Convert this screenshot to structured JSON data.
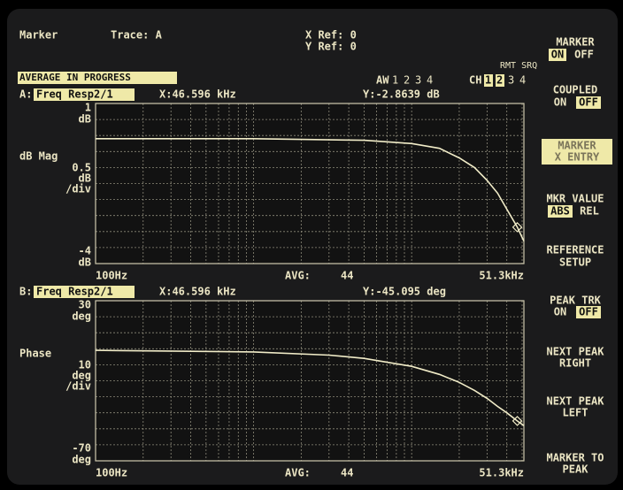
{
  "header": {
    "marker": "Marker",
    "trace": "Trace: A",
    "x_ref": "X Ref: 0",
    "y_ref": "Y Ref: 0",
    "status": "AVERAGE IN PROGRESS",
    "rmt_srq": "RMT SRQ",
    "aw": {
      "label": "AW",
      "items": [
        "1",
        "2",
        "3",
        "4"
      ]
    },
    "ch": {
      "label": "CH",
      "items": [
        "1",
        "2",
        "3",
        "4"
      ]
    }
  },
  "panels": [
    {
      "id": "A:",
      "name": "Freq Resp2/1",
      "marker_x": {
        "value": 46596,
        "label": "X:46.596  kHz"
      },
      "marker_y": {
        "value": -2.8639,
        "label": "Y:-2.8639 dB"
      },
      "ylabel": "dB Mag",
      "per_div": 0.5,
      "per_div_unit": "dB",
      "per_div_suffix": "/div",
      "ylim": [
        -4,
        1
      ],
      "yunit": "dB",
      "ygrid": [
        1,
        0.5,
        0,
        -0.5,
        -1,
        -1.5,
        -2,
        -2.5,
        -3,
        -3.5,
        -4
      ],
      "xlim": [
        {
          "value": 100,
          "label": "100Hz"
        },
        {
          "value": 51300,
          "label": "51.3kHz"
        }
      ],
      "xgrid": [
        200,
        300,
        400,
        500,
        600,
        700,
        800,
        900,
        1000,
        2000,
        3000,
        4000,
        5000,
        6000,
        7000,
        8000,
        9000,
        10000,
        20000,
        30000,
        40000,
        50000
      ],
      "avg_label": "AVG:",
      "avg": 44,
      "trace": {
        "x": [
          100,
          1000,
          5000,
          10000,
          15000,
          20000,
          25000,
          30000,
          35000,
          40000,
          46596,
          51300
        ],
        "values": [
          -0.1,
          -0.1,
          -0.15,
          -0.25,
          -0.4,
          -0.7,
          -1.0,
          -1.4,
          -1.8,
          -2.3,
          -2.86,
          -3.3
        ]
      }
    },
    {
      "id": "B:",
      "name": "Freq Resp2/1",
      "marker_x": {
        "value": 46596,
        "label": "X:46.596  kHz"
      },
      "marker_y": {
        "value": -45.095,
        "label": "Y:-45.095 deg"
      },
      "ylabel": "Phase",
      "per_div": 10,
      "per_div_unit": "deg",
      "per_div_suffix": "/div",
      "ylim": [
        -70,
        30
      ],
      "yunit": "deg",
      "ygrid": [
        30,
        20,
        10,
        0,
        -10,
        -20,
        -30,
        -40,
        -50,
        -60,
        -70
      ],
      "xlim": [
        {
          "value": 100,
          "label": "100Hz"
        },
        {
          "value": 51300,
          "label": "51.3kHz"
        }
      ],
      "xgrid": [
        200,
        300,
        400,
        500,
        600,
        700,
        800,
        900,
        1000,
        2000,
        3000,
        4000,
        5000,
        6000,
        7000,
        8000,
        9000,
        10000,
        20000,
        30000,
        40000,
        50000
      ],
      "avg_label": "AVG:",
      "avg": 44,
      "trace": {
        "x": [
          100,
          1000,
          3000,
          5000,
          10000,
          15000,
          20000,
          25000,
          30000,
          35000,
          40000,
          46596,
          51300
        ],
        "values": [
          -1,
          -2,
          -4,
          -6,
          -11,
          -16,
          -21,
          -26,
          -31,
          -36,
          -40,
          -45.1,
          -48
        ]
      }
    }
  ],
  "softkeys": [
    {
      "lines": [
        "MARKER"
      ],
      "options": [
        "ON",
        "OFF"
      ]
    },
    {
      "lines": [
        "COUPLED"
      ],
      "options": [
        "ON",
        "OFF"
      ]
    },
    {
      "lines": [
        "MARKER",
        "X ENTRY"
      ]
    },
    {
      "lines": [
        "MKR VALUE"
      ],
      "options": [
        "ABS",
        "REL"
      ]
    },
    {
      "lines": [
        "REFERENCE",
        "SETUP"
      ]
    },
    {
      "lines": [
        "PEAK TRK"
      ],
      "options": [
        "ON",
        "OFF"
      ]
    },
    {
      "lines": [
        "NEXT PEAK",
        "RIGHT"
      ]
    },
    {
      "lines": [
        "NEXT PEAK",
        "LEFT"
      ]
    },
    {
      "lines": [
        "MARKER TO",
        "PEAK"
      ]
    }
  ]
}
